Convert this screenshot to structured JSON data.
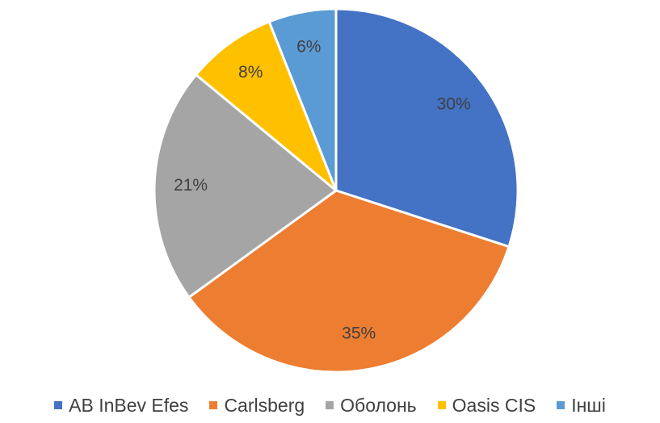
{
  "chart_data": {
    "type": "pie",
    "categories": [
      "AB InBev Efes",
      "Carlsberg",
      "Оболонь",
      "Oasis CIS",
      "Інші"
    ],
    "values": [
      30,
      35,
      21,
      8,
      6
    ],
    "value_labels": [
      "30%",
      "35%",
      "21%",
      "8%",
      "6%"
    ],
    "colors": [
      "#4472c4",
      "#ed7d31",
      "#a5a5a5",
      "#ffc000",
      "#5b9bd5"
    ],
    "legend": "bottom"
  }
}
